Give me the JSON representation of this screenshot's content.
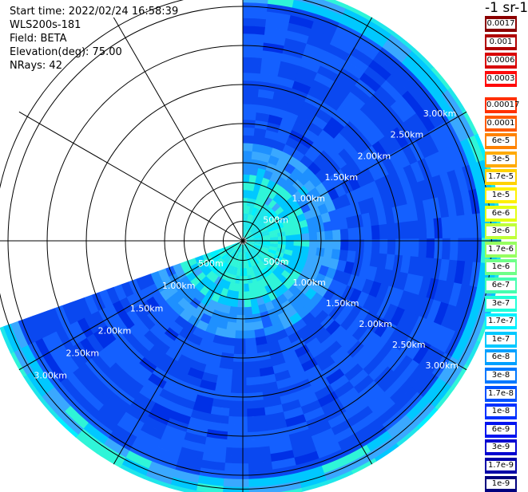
{
  "info": {
    "start_time": "Start time: 2022/02/24 16:58:39",
    "instrument": "WLS200s-181",
    "field": "Field: BETA",
    "elevation": "Elevation(deg): 75.00",
    "nrays": "NRays: 42"
  },
  "colorbar": {
    "unit": "-1 sr-1",
    "upper_entries": [
      "0.0017",
      "0.001",
      "0.0006",
      "0.0003"
    ],
    "upper_colors": [
      "#8b0000",
      "#b00000",
      "#d80000",
      "#ff0a0a"
    ],
    "lower_entries": [
      "0.00017",
      "0.0001",
      "6e-5",
      "3e-5",
      "1.7e-5",
      "1e-5",
      "6e-6",
      "3e-6",
      "1.7e-6",
      "1e-6",
      "6e-7",
      "3e-7",
      "1.7e-7",
      "1e-7",
      "6e-8",
      "3e-8",
      "1.7e-8",
      "1e-8",
      "6e-9",
      "3e-9",
      "1.7e-9",
      "1e-9"
    ],
    "lower_colors": [
      "#ff3000",
      "#ff5a00",
      "#ff8200",
      "#ffaa00",
      "#ffd200",
      "#fff000",
      "#e4ff14",
      "#c0ff3a",
      "#96ff60",
      "#6eff88",
      "#46ffb0",
      "#22ffd8",
      "#00f0ff",
      "#00c8ff",
      "#00a0ff",
      "#0078ff",
      "#0050ff",
      "#0030ff",
      "#0014ef",
      "#0000d0",
      "#0000a8",
      "#00007e"
    ]
  },
  "chart_data": {
    "type": "polar-ppi",
    "field": "BETA",
    "elevation_deg": 75.0,
    "nrays": 42,
    "range_rings_km": [
      0.5,
      1.0,
      1.5,
      2.0,
      2.5,
      3.0
    ],
    "ring_labels": [
      "500m",
      "1.00km",
      "1.50km",
      "2.00km",
      "2.50km",
      "3.00km"
    ],
    "scan_azimuth_start_deg": 0,
    "scan_azimuth_end_deg": 250,
    "max_range_km": 3.3,
    "data_start_range_km": 0.05,
    "radial_spoke_step_deg": 30,
    "colors": {
      "near": "#2ff5d8",
      "mid": "#3aa8ff",
      "far": "#1440f0",
      "edge": "#22c6f4"
    }
  }
}
